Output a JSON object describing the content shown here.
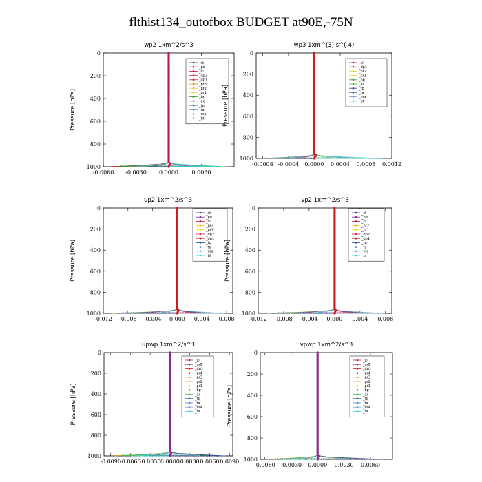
{
  "title": "flthist134_outofbox  BUDGET at90E,-75N",
  "colors": {
    "st": "#4b2d82",
    "pd": "#7a2c8e",
    "cl": "#c21840",
    "dp2": "#e0285a",
    "dp1": "#d01c1c",
    "pr3": "#f08a1a",
    "pr2": "#f5c23a",
    "pr1": "#e8e040",
    "bp": "#2a9a2a",
    "ac": "#3fbf4f",
    "tp": "#1f4f9f",
    "ta": "#3f7fc8",
    "ma": "#6aa6d8",
    "bt": "#30d0e8",
    "mfl": "#8a2a8a",
    "pr4": "#c01a20"
  },
  "chart_data": [
    {
      "type": "line",
      "title": "wp2   1xm^2/s^3",
      "ylabel": "Pressure [hPa]",
      "ylim": [
        1000,
        0
      ],
      "xlim": [
        -0.006,
        0.006
      ],
      "xticks": [
        "-0.0060",
        "-0.0030",
        "0.0000",
        "0.0030"
      ],
      "xtick_values": [
        -0.006,
        -0.003,
        0,
        0.003
      ],
      "yticks": [
        "0",
        "200",
        "400",
        "600",
        "800",
        "1000"
      ],
      "legend": [
        "_st",
        "_pd",
        "_cl",
        "_dp2",
        "_dp1",
        "_pr3",
        "_pr2",
        "_pr1",
        "_bp",
        "_ac",
        "_tp",
        "_ta",
        "_ma",
        "_bt"
      ],
      "legend_keys": [
        "st",
        "pd",
        "cl",
        "dp2",
        "dp1",
        "pr3",
        "pr2",
        "pr1",
        "bp",
        "ac",
        "tp",
        "ta",
        "ma",
        "bt"
      ],
      "dominant": "cl",
      "spread": [
        -0.0055,
        0.0055
      ]
    },
    {
      "type": "line",
      "title": "wp3   1xm^(3) s^(-4)",
      "ylabel": "Pressure [hPa]",
      "ylim": [
        1000,
        0
      ],
      "xlim": [
        -0.0009,
        0.0012
      ],
      "xticks": [
        "-0.0008",
        "-0.0004",
        "0.0000",
        "0.0004",
        "0.0008",
        "0.0012"
      ],
      "xtick_values": [
        -0.0008,
        -0.0004,
        0,
        0.0004,
        0.0008,
        0.0012
      ],
      "yticks": [
        "0",
        "200",
        "400",
        "600",
        "800",
        "1000"
      ],
      "legend": [
        "_cl",
        "_dp1",
        "_pr2",
        "_pr1",
        "_bp1",
        "_ac",
        "_tp",
        "_ta",
        "_ma",
        "_bt"
      ],
      "legend_keys": [
        "cl",
        "dp1",
        "pr2",
        "pr1",
        "bp",
        "ac",
        "tp",
        "ta",
        "ma",
        "bt"
      ],
      "dominant": "dp1",
      "spread": [
        -0.0008,
        0.0011
      ]
    },
    {
      "type": "line",
      "title": "up2   1xm^2/s^3",
      "ylabel": "Pressure [hPa]",
      "ylim": [
        1000,
        0
      ],
      "xlim": [
        -0.012,
        0.009
      ],
      "xticks": [
        "-0.012",
        "-0.008",
        "-0.004",
        "0.000",
        "0.004",
        "0.008"
      ],
      "xtick_values": [
        -0.012,
        -0.008,
        -0.004,
        0,
        0.004,
        0.008
      ],
      "yticks": [
        "0",
        "200",
        "400",
        "600",
        "800",
        "1000"
      ],
      "legend": [
        "_st",
        "_pd",
        "_cl",
        "_pr2",
        "_pr1",
        "_dp2",
        "_dp1",
        "_tp",
        "_ta",
        "_ma",
        "_bt"
      ],
      "legend_keys": [
        "st",
        "pd",
        "cl",
        "pr2",
        "pr1",
        "dp2",
        "dp1",
        "tp",
        "ta",
        "ma",
        "bt"
      ],
      "dominant": "dp1",
      "spread": [
        -0.011,
        0.008
      ]
    },
    {
      "type": "line",
      "title": "vp2   1xm^2/s^3",
      "ylabel": "Pressure [hPa]",
      "ylim": [
        1000,
        0
      ],
      "xlim": [
        -0.012,
        0.009
      ],
      "xticks": [
        "-0.012",
        "-0.008",
        "-0.004",
        "0.000",
        "0.004",
        "0.008"
      ],
      "xtick_values": [
        -0.012,
        -0.008,
        -0.004,
        0,
        0.004,
        0.008
      ],
      "yticks": [
        "0",
        "200",
        "400",
        "600",
        "800",
        "1000"
      ],
      "legend": [
        "_st",
        "_pd",
        "_cl",
        "_pr2",
        "_pr1",
        "_dp2",
        "_dp1",
        "_tp",
        "_ta",
        "_ma",
        "_bt"
      ],
      "legend_keys": [
        "st",
        "pd",
        "cl",
        "pr2",
        "pr1",
        "dp2",
        "dp1",
        "tp",
        "ta",
        "ma",
        "bt"
      ],
      "dominant": "dp1",
      "spread": [
        -0.011,
        0.008
      ]
    },
    {
      "type": "line",
      "title": "upwp   1xm^2/s^3",
      "ylabel": "Pressure [hPa]",
      "ylim": [
        1000,
        0
      ],
      "xlim": [
        -0.01,
        0.0095
      ],
      "xticks": [
        "-0.0090",
        "-0.0060",
        "-0.0030",
        "0.0000",
        "0.0030",
        "0.0060",
        "0.0090"
      ],
      "xtick_values": [
        -0.009,
        -0.006,
        -0.003,
        0,
        0.003,
        0.006,
        0.009
      ],
      "yticks": [
        "0",
        "200",
        "400",
        "600",
        "800",
        "1000"
      ],
      "legend": [
        "_cl",
        "_mfl",
        "_dp1",
        "_pr4",
        "_pr3",
        "_pr2",
        "_pr1",
        "_bp",
        "_ac",
        "_tp",
        "_ta",
        "_ma",
        "_bt"
      ],
      "legend_keys": [
        "cl",
        "mfl",
        "dp1",
        "pr4",
        "pr3",
        "pr2",
        "pr1",
        "bp",
        "ac",
        "tp",
        "ta",
        "ma",
        "bt"
      ],
      "dominant": "mfl",
      "spread": [
        -0.009,
        0.009
      ]
    },
    {
      "type": "line",
      "title": "vpwp   1xm^2/s^3",
      "ylabel": "Pressure [hPa]",
      "ylim": [
        1000,
        0
      ],
      "xlim": [
        -0.0065,
        0.0085
      ],
      "xticks": [
        "-0.0060",
        "-0.0030",
        "0.0000",
        "0.0030",
        "0.0060"
      ],
      "xtick_values": [
        -0.006,
        -0.003,
        0,
        0.003,
        0.006
      ],
      "yticks": [
        "0",
        "200",
        "400",
        "600",
        "800",
        "1000"
      ],
      "legend": [
        "_cl",
        "_mfl",
        "_dp1",
        "_pr4",
        "_pr3",
        "_pr2",
        "_pr1",
        "_bp",
        "_ac",
        "_tp",
        "_ta",
        "_ma",
        "_bt"
      ],
      "legend_keys": [
        "cl",
        "mfl",
        "dp1",
        "pr4",
        "pr3",
        "pr2",
        "pr1",
        "bp",
        "ac",
        "tp",
        "ta",
        "ma",
        "bt"
      ],
      "dominant": "mfl",
      "spread": [
        -0.006,
        0.008
      ]
    }
  ]
}
